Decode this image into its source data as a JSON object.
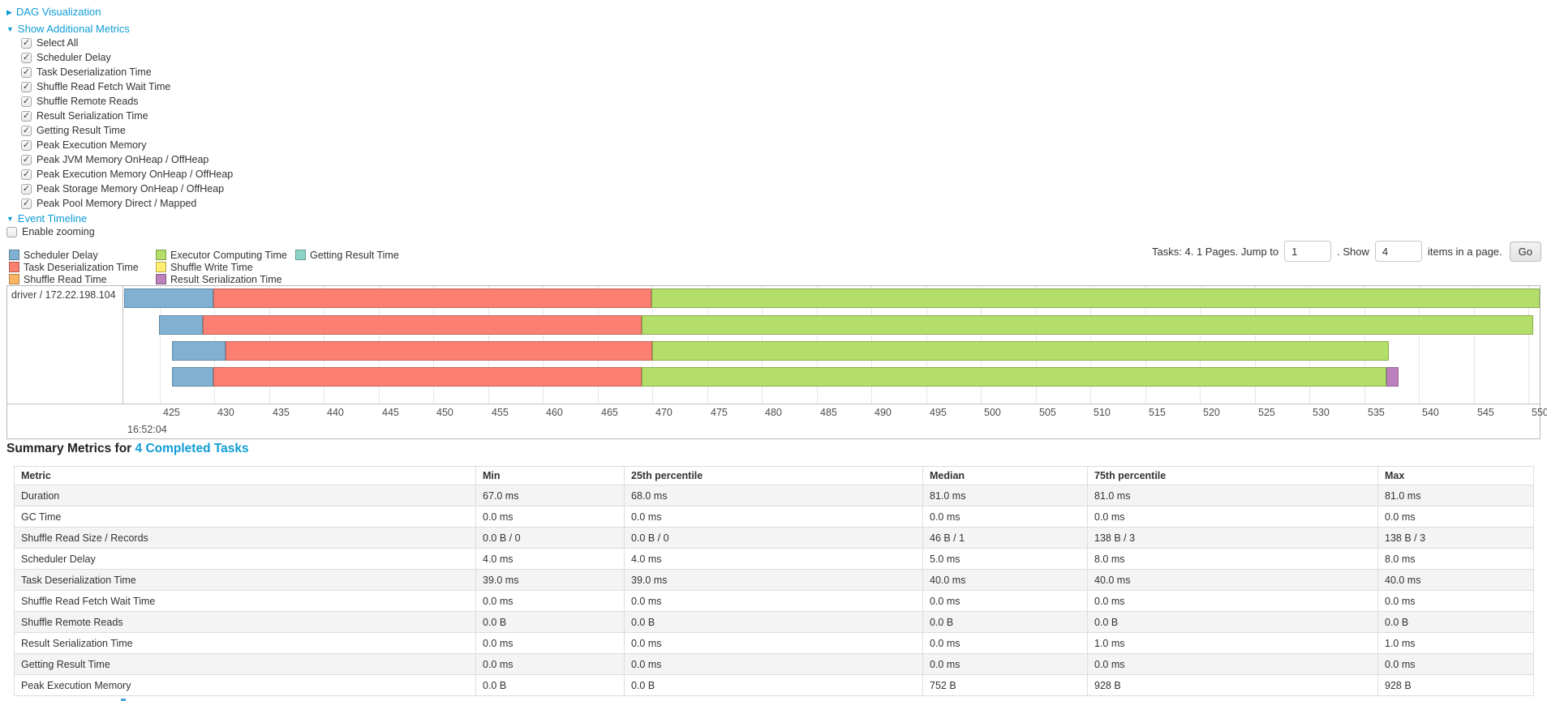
{
  "controls": {
    "dag": {
      "label": "DAG Visualization",
      "state": "collapsed"
    },
    "metrics_toggle": {
      "label": "Show Additional Metrics",
      "state": "expanded"
    },
    "checkboxes": [
      {
        "label": "Select All",
        "checked": true
      },
      {
        "label": "Scheduler Delay",
        "checked": true
      },
      {
        "label": "Task Deserialization Time",
        "checked": true
      },
      {
        "label": "Shuffle Read Fetch Wait Time",
        "checked": true
      },
      {
        "label": "Shuffle Remote Reads",
        "checked": true
      },
      {
        "label": "Result Serialization Time",
        "checked": true
      },
      {
        "label": "Getting Result Time",
        "checked": true
      },
      {
        "label": "Peak Execution Memory",
        "checked": true
      },
      {
        "label": "Peak JVM Memory OnHeap / OffHeap",
        "checked": true
      },
      {
        "label": "Peak Execution Memory OnHeap / OffHeap",
        "checked": true
      },
      {
        "label": "Peak Storage Memory OnHeap / OffHeap",
        "checked": true
      },
      {
        "label": "Peak Pool Memory Direct / Mapped",
        "checked": true
      }
    ],
    "event_timeline": {
      "label": "Event Timeline",
      "state": "expanded"
    },
    "enable_zooming": {
      "label": "Enable zooming",
      "checked": false
    }
  },
  "pagination": {
    "tasks_label": "Tasks: 4. 1 Pages. Jump to",
    "jump_value": "1",
    "show_label": ". Show",
    "show_value": "4",
    "items_label": "items in a page.",
    "go_label": "Go"
  },
  "colors": {
    "link": "#0e9cd6",
    "scheduler_delay": "#80B1D3",
    "task_deserialization_time": "#FB8072",
    "shuffle_read_time": "#FDB462",
    "executor_computing_time": "#B3DE69",
    "shuffle_write_time": "#FFED6F",
    "result_serialization_time": "#BC80BD",
    "getting_result_time": "#8DD3C7"
  },
  "chart_data": {
    "type": "bar",
    "subtype": "task-timeline-gantt",
    "title": "Event Timeline",
    "group_label": "driver / 172.22.198.104",
    "legend_columns": [
      [
        {
          "metric": "scheduler_delay",
          "label": "Scheduler Delay"
        },
        {
          "metric": "task_deserialization_time",
          "label": "Task Deserialization Time"
        },
        {
          "metric": "shuffle_read_time",
          "label": "Shuffle Read Time"
        }
      ],
      [
        {
          "metric": "executor_computing_time",
          "label": "Executor Computing Time"
        },
        {
          "metric": "shuffle_write_time",
          "label": "Shuffle Write Time"
        },
        {
          "metric": "result_serialization_time",
          "label": "Result Serialization Time"
        }
      ],
      [
        {
          "metric": "getting_result_time",
          "label": "Getting Result Time"
        }
      ]
    ],
    "x_axis": {
      "unit": "milliseconds within second 16:52:04",
      "major_label": "16:52:04",
      "tick_step": 5,
      "ticks": [
        425,
        430,
        435,
        440,
        445,
        450,
        455,
        460,
        465,
        470,
        475,
        480,
        485,
        490,
        495,
        500,
        505,
        510,
        515,
        520,
        525,
        530,
        535,
        540,
        545,
        550
      ],
      "range": [
        421.75,
        551.0
      ]
    },
    "tasks": [
      {
        "row": 1,
        "segments": [
          {
            "metric": "scheduler_delay",
            "start": 421.75,
            "end": 429.9
          },
          {
            "metric": "task_deserialization_time",
            "start": 429.9,
            "end": 469.9
          },
          {
            "metric": "executor_computing_time",
            "start": 469.9,
            "end": 551.0
          }
        ]
      },
      {
        "row": 2,
        "segments": [
          {
            "metric": "scheduler_delay",
            "start": 424.9,
            "end": 428.9
          },
          {
            "metric": "task_deserialization_time",
            "start": 428.9,
            "end": 469.0
          },
          {
            "metric": "executor_computing_time",
            "start": 469.0,
            "end": 550.4
          }
        ]
      },
      {
        "row": 3,
        "segments": [
          {
            "metric": "scheduler_delay",
            "start": 426.1,
            "end": 431.0
          },
          {
            "metric": "task_deserialization_time",
            "start": 431.0,
            "end": 470.0
          },
          {
            "metric": "executor_computing_time",
            "start": 470.0,
            "end": 537.2
          }
        ]
      },
      {
        "row": 4,
        "segments": [
          {
            "metric": "scheduler_delay",
            "start": 426.1,
            "end": 429.9
          },
          {
            "metric": "task_deserialization_time",
            "start": 429.9,
            "end": 469.0
          },
          {
            "metric": "executor_computing_time",
            "start": 469.0,
            "end": 537.0
          },
          {
            "metric": "result_serialization_time",
            "start": 537.0,
            "end": 538.1
          }
        ]
      }
    ]
  },
  "summary": {
    "heading": "Summary Metrics for",
    "link": "4 Completed Tasks",
    "table": {
      "columns": [
        "Metric",
        "Min",
        "25th percentile",
        "Median",
        "75th percentile",
        "Max"
      ],
      "rows": [
        {
          "metric": "Duration",
          "values": [
            "67.0 ms",
            "68.0 ms",
            "81.0 ms",
            "81.0 ms",
            "81.0 ms"
          ]
        },
        {
          "metric": "GC Time",
          "values": [
            "0.0 ms",
            "0.0 ms",
            "0.0 ms",
            "0.0 ms",
            "0.0 ms"
          ]
        },
        {
          "metric": "Shuffle Read Size / Records",
          "values": [
            "0.0 B / 0",
            "0.0 B / 0",
            "46 B / 1",
            "138 B / 3",
            "138 B / 3"
          ]
        },
        {
          "metric": "Scheduler Delay",
          "values": [
            "4.0 ms",
            "4.0 ms",
            "5.0 ms",
            "8.0 ms",
            "8.0 ms"
          ]
        },
        {
          "metric": "Task Deserialization Time",
          "values": [
            "39.0 ms",
            "39.0 ms",
            "40.0 ms",
            "40.0 ms",
            "40.0 ms"
          ]
        },
        {
          "metric": "Shuffle Read Fetch Wait Time",
          "values": [
            "0.0 ms",
            "0.0 ms",
            "0.0 ms",
            "0.0 ms",
            "0.0 ms"
          ]
        },
        {
          "metric": "Shuffle Remote Reads",
          "values": [
            "0.0 B",
            "0.0 B",
            "0.0 B",
            "0.0 B",
            "0.0 B"
          ]
        },
        {
          "metric": "Result Serialization Time",
          "values": [
            "0.0 ms",
            "0.0 ms",
            "0.0 ms",
            "1.0 ms",
            "1.0 ms"
          ]
        },
        {
          "metric": "Getting Result Time",
          "values": [
            "0.0 ms",
            "0.0 ms",
            "0.0 ms",
            "0.0 ms",
            "0.0 ms"
          ]
        },
        {
          "metric": "Peak Execution Memory",
          "values": [
            "0.0 B",
            "0.0 B",
            "752 B",
            "928 B",
            "928 B"
          ]
        }
      ]
    }
  }
}
